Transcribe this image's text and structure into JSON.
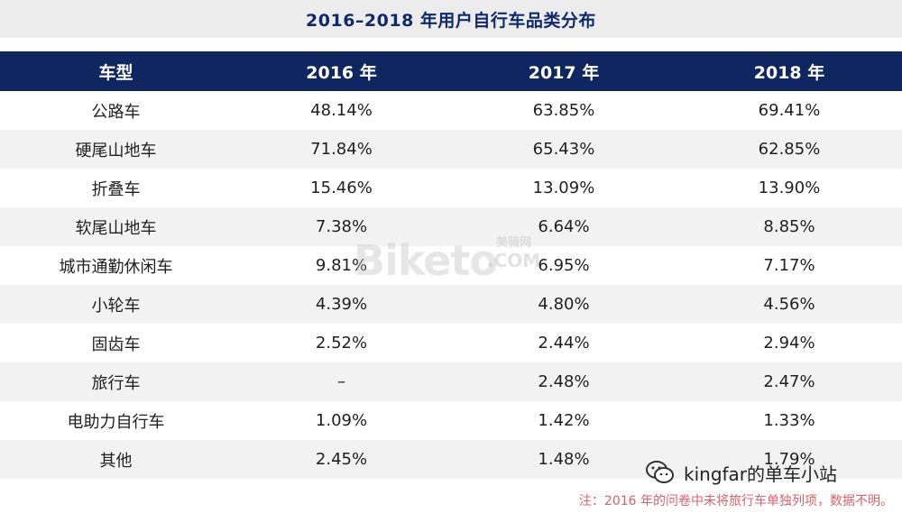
{
  "title": "2016–2018 年用户自行车品类分布",
  "table": {
    "headers": [
      "车型",
      "2016 年",
      "2017 年",
      "2018 年"
    ],
    "rows": [
      [
        "公路车",
        "48.14%",
        "63.85%",
        "69.41%"
      ],
      [
        "硬尾山地车",
        "71.84%",
        "65.43%",
        "62.85%"
      ],
      [
        "折叠车",
        "15.46%",
        "13.09%",
        "13.90%"
      ],
      [
        "软尾山地车",
        "7.38%",
        "6.64%",
        "8.85%"
      ],
      [
        "城市通勤休闲车",
        "9.81%",
        "6.95%",
        "7.17%"
      ],
      [
        "小轮车",
        "4.39%",
        "4.80%",
        "4.56%"
      ],
      [
        "固齿车",
        "2.52%",
        "2.44%",
        "2.94%"
      ],
      [
        "旅行车",
        "–",
        "2.48%",
        "2.47%"
      ],
      [
        "电助力自行车",
        "1.09%",
        "1.42%",
        "1.33%"
      ],
      [
        "其他",
        "2.45%",
        "1.48%",
        "1.79%"
      ]
    ]
  },
  "note": "注：2016 年的问卷中未将旅行车单独列项，数据不明。",
  "watermark": {
    "text": "Biketo",
    "cn": "美骑网",
    "domain": ".COM"
  },
  "brand": {
    "label": "kingfar的单车小站",
    "icon": "wechat-icon"
  },
  "colors": {
    "header_bg": "#0f2660",
    "title_color": "#0f2a6a",
    "stripe": "#f2f2f2",
    "note": "#e0606a"
  }
}
